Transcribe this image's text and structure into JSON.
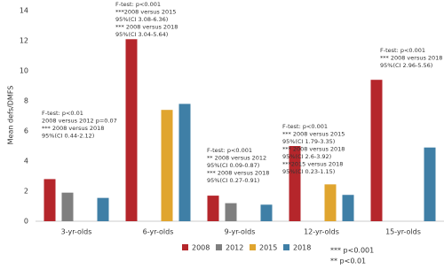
{
  "chart_data": {
    "type": "bar",
    "ylabel": "Mean defs/DMFS",
    "categories": [
      "3-yr-olds",
      "6-yr-olds",
      "9-yr-olds",
      "12-yr-olds",
      "15-yr-olds"
    ],
    "series": [
      {
        "name": "2008",
        "color": "#b5262b",
        "values": [
          2.8,
          12.1,
          1.7,
          5.0,
          9.4
        ]
      },
      {
        "name": "2012",
        "color": "#7f7f7f",
        "values": [
          1.9,
          null,
          1.2,
          null,
          null
        ]
      },
      {
        "name": "2015",
        "color": "#e0a52f",
        "values": [
          null,
          7.4,
          null,
          2.45,
          null
        ]
      },
      {
        "name": "2018",
        "color": "#3f7fa6",
        "values": [
          1.55,
          7.8,
          1.1,
          1.75,
          4.9
        ]
      }
    ],
    "ylim": [
      0,
      14
    ],
    "yticks": [
      0,
      2,
      4,
      6,
      8,
      10,
      12,
      14
    ],
    "grid": false,
    "annotations": [
      [
        "F-test: p<0.01",
        "2008 versus 2012 p=0.07",
        "*** 2008 versus 2018",
        "95%(CI 0.44-2.12)"
      ],
      [
        "F-test: p<0.001",
        "***2008 versus 2015",
        "95%(CI 3.08-6.36)",
        "*** 2008 versus 2018",
        "95%(CI 3.04-5.64)"
      ],
      [
        "F-test: p<0.001",
        "** 2008 versus 2012",
        "95%(CI 0.09-0.87)",
        "*** 2008 versus 2018",
        "95%(CI 0.27-0.91)"
      ],
      [
        "F-test: p<0.001",
        "*** 2008 versus 2015",
        "95%(CI 1.79-3.35)",
        "*** 2008 versus 2018",
        "95%(CI 2.6-3.92)",
        "***2015 versus 2018",
        "95%(CI 0.23-1.15)"
      ],
      [
        "F-test: p<0.001",
        "*** 2008 versus 2018",
        "95%(CI 2.96-5.56)"
      ]
    ],
    "significance_legend": [
      "*** p<0.001",
      "** p<0.01"
    ]
  }
}
